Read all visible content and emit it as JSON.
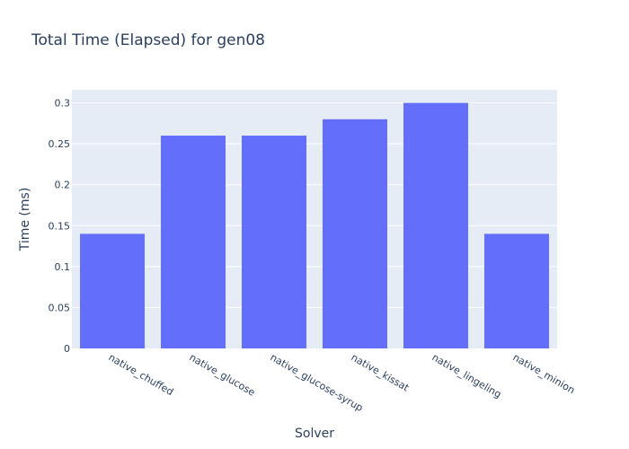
{
  "chart_data": {
    "type": "bar",
    "title": "Total Time (Elapsed) for gen08",
    "xlabel": "Solver",
    "ylabel": "Time (ms)",
    "categories": [
      "native_chuffed",
      "native_glucose",
      "native_glucose-syrup",
      "native_kissat",
      "native_lingeling",
      "native_minion"
    ],
    "values": [
      0.14,
      0.26,
      0.26,
      0.28,
      0.3,
      0.14
    ],
    "ylim": [
      0,
      0.316
    ],
    "yticks": [
      0,
      0.05,
      0.1,
      0.15,
      0.2,
      0.25,
      0.3
    ],
    "ytick_labels": [
      "0",
      "0.05",
      "0.1",
      "0.15",
      "0.2",
      "0.25",
      "0.3"
    ],
    "bar_color": "#636efa",
    "plot_bg_color": "#e5ecf6",
    "grid": true,
    "legend": "none"
  }
}
